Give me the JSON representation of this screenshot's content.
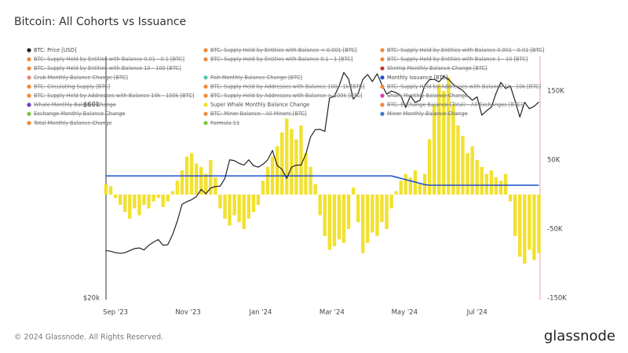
{
  "chart_data": {
    "type": "combo",
    "title": "Bitcoin: All Cohorts vs Issuance",
    "footer": "© 2024 Glassnode. All Rights Reserved.",
    "brand": "glassnode",
    "xlim": [
      0,
      365
    ],
    "xticks": [
      {
        "value": 8,
        "label": "Sep '23"
      },
      {
        "value": 69,
        "label": "Nov '23"
      },
      {
        "value": 130,
        "label": "Jan '24"
      },
      {
        "value": 190,
        "label": "Mar '24"
      },
      {
        "value": 251,
        "label": "May '24"
      },
      {
        "value": 312,
        "label": "Jul '24"
      }
    ],
    "ylim": [
      20000,
      79000
    ],
    "log_y": true,
    "yticks": [
      {
        "value": 20000,
        "label": "$20k"
      },
      {
        "value": 60000,
        "label": "$60k"
      }
    ],
    "y2lim": [
      -150000,
      200000
    ],
    "y2ticks": [
      {
        "value": 150000,
        "label": "150K"
      },
      {
        "value": 50000,
        "label": "50K"
      },
      {
        "value": -50000,
        "label": "-50K"
      },
      {
        "value": -150000,
        "label": "-150K"
      }
    ],
    "x": [
      0,
      4,
      8,
      12,
      16,
      20,
      24,
      28,
      32,
      36,
      40,
      44,
      48,
      52,
      56,
      60,
      64,
      68,
      72,
      76,
      80,
      84,
      88,
      92,
      96,
      100,
      104,
      108,
      112,
      116,
      120,
      124,
      128,
      132,
      136,
      140,
      144,
      148,
      152,
      156,
      160,
      164,
      168,
      172,
      176,
      180,
      184,
      188,
      192,
      196,
      200,
      204,
      208,
      212,
      216,
      220,
      224,
      228,
      232,
      236,
      240,
      244,
      248,
      252,
      256,
      260,
      264,
      268,
      272,
      276,
      280,
      284,
      288,
      292,
      296,
      300,
      304,
      308,
      312,
      316,
      320,
      324,
      328,
      332,
      336,
      340,
      344,
      348,
      352,
      356,
      360,
      364
    ],
    "series": [
      {
        "name": "BTC: Price [USD]",
        "color": "#222222",
        "kind": "line",
        "axis": "y",
        "values": [
          26200,
          26100,
          25900,
          25800,
          25900,
          26200,
          26500,
          26600,
          26300,
          27000,
          27500,
          27900,
          27000,
          27100,
          28700,
          31000,
          34100,
          34600,
          35000,
          35600,
          37100,
          36200,
          37400,
          37700,
          37800,
          39500,
          43900,
          43700,
          43000,
          42600,
          43900,
          42500,
          42100,
          42800,
          43900,
          46300,
          42500,
          41600,
          39500,
          42100,
          42600,
          42600,
          45300,
          50000,
          52100,
          52200,
          51600,
          62400,
          63000,
          66800,
          72100,
          69500,
          62000,
          64000,
          69400,
          71300,
          68500,
          71600,
          67200,
          63800,
          64900,
          64300,
          63100,
          59100,
          63200,
          60800,
          61600,
          67000,
          69200,
          69400,
          68400,
          70500,
          69400,
          67400,
          66200,
          65100,
          63200,
          61600,
          62800,
          56600,
          58000,
          59200,
          64100,
          68200,
          65800,
          66800,
          61400,
          56000,
          60900,
          58700,
          59500,
          61000
        ]
      },
      {
        "name": "BTC: Supply Held by Entities with Balance < 0.001 [BTC]",
        "color": "#f0883a",
        "hidden": true
      },
      {
        "name": "BTC: Supply Held by Entities with Balance 0.001 - 0.01 [BTC]",
        "color": "#f0883a",
        "hidden": true
      },
      {
        "name": "BTC: Supply Held by Entities with Balance 0.01 - 0.1 [BTC]",
        "color": "#f0883a",
        "hidden": true
      },
      {
        "name": "BTC: Supply Held by Entities with Balance 0.1 - 1 [BTC]",
        "color": "#f0883a",
        "hidden": true
      },
      {
        "name": "BTC: Supply Held by Entities with Balance 1 - 10 [BTC]",
        "color": "#f0883a",
        "hidden": true
      },
      {
        "name": "BTC: Supply Held by Entities with Balance 10 - 100 [BTC]",
        "color": "#f0883a",
        "hidden": true
      },
      {
        "name": "Shrimp Monthly Balance Change [BTC]",
        "color": "#c0392b",
        "hidden": true
      },
      {
        "name": "Crab Monthly Balance Change [BTC]",
        "color": "#e58a7a",
        "hidden": true
      },
      {
        "name": "Fish Monthly Balance Change [BTC]",
        "color": "#5bbfae",
        "hidden": true
      },
      {
        "name": "Monthly Issuance [BTC]",
        "color": "#1f4fd1",
        "kind": "line",
        "axis": "y2",
        "values": [
          27000,
          27000,
          27000,
          27000,
          27000,
          27000,
          27000,
          27000,
          27000,
          27000,
          27000,
          27000,
          27000,
          27000,
          27000,
          27000,
          27000,
          27000,
          27000,
          27000,
          27000,
          27000,
          27000,
          27000,
          27000,
          27000,
          27000,
          27000,
          27000,
          27000,
          27000,
          27000,
          27000,
          27000,
          27000,
          27000,
          27000,
          27000,
          27000,
          27000,
          27000,
          27000,
          27000,
          27000,
          27000,
          27000,
          27000,
          27000,
          27000,
          27000,
          27000,
          27000,
          27000,
          27000,
          27000,
          27000,
          27000,
          27000,
          27000,
          27000,
          27000,
          25200,
          23400,
          21600,
          19800,
          18000,
          16200,
          14400,
          13500,
          13500,
          13500,
          13500,
          13500,
          13500,
          13500,
          13500,
          13500,
          13500,
          13500,
          13500,
          13500,
          13500,
          13500,
          13500,
          13500,
          13500,
          13500,
          13500,
          13500,
          13500,
          13500,
          13500
        ]
      },
      {
        "name": "BTC: Circulating Supply [BTC]",
        "color": "#f0883a",
        "hidden": true
      },
      {
        "name": "BTC: Supply Held by Addresses with Balance 100 - 1k [BTC]",
        "color": "#f0883a",
        "hidden": true
      },
      {
        "name": "BTC: Supply Held by Addresses with Balance 1k - 10k [BTC]",
        "color": "#f0883a",
        "hidden": true
      },
      {
        "name": "BTC: Supply Held by Addresses with Balance 10k - 100k [BTC]",
        "color": "#f0883a",
        "hidden": true
      },
      {
        "name": "BTC: Supply Held by Addresses with Balance > 100k [BTC]",
        "color": "#f0883a",
        "hidden": true
      },
      {
        "name": "Shark Monthly Balance Change",
        "color": "#d63fb0",
        "hidden": true
      },
      {
        "name": "Whale Monthly Balance Change",
        "color": "#6a3fbf",
        "hidden": true
      },
      {
        "name": "Super Whale Monthly Balance Change",
        "color": "#f2e12e",
        "kind": "bar",
        "axis": "y2",
        "values": [
          15000,
          12000,
          -5000,
          -15000,
          -25000,
          -35000,
          -20000,
          -30000,
          -15000,
          -20000,
          -10000,
          -5000,
          -18000,
          -10000,
          5000,
          20000,
          35000,
          55000,
          60000,
          45000,
          40000,
          30000,
          50000,
          25000,
          -20000,
          -35000,
          -45000,
          -30000,
          -40000,
          -50000,
          -35000,
          -25000,
          -15000,
          20000,
          40000,
          55000,
          70000,
          90000,
          110000,
          95000,
          80000,
          100000,
          60000,
          40000,
          15000,
          -30000,
          -60000,
          -80000,
          -75000,
          -65000,
          -70000,
          -50000,
          10000,
          -40000,
          -85000,
          -70000,
          -55000,
          -60000,
          -40000,
          -50000,
          -20000,
          5000,
          20000,
          30000,
          25000,
          35000,
          15000,
          30000,
          80000,
          130000,
          160000,
          150000,
          170000,
          130000,
          100000,
          85000,
          60000,
          70000,
          50000,
          40000,
          30000,
          35000,
          25000,
          20000,
          30000,
          -10000,
          -60000,
          -90000,
          -100000,
          -80000,
          -95000,
          -85000
        ]
      },
      {
        "name": "BTC: Exchange Balance (Total) - All Exchanges [BTC]",
        "color": "#f0883a",
        "hidden": true
      },
      {
        "name": "Exchange Monthly Balance Change",
        "color": "#7cc142",
        "hidden": true
      },
      {
        "name": "BTC: Miner Balance - All Miners [BTC]",
        "color": "#f0883a",
        "hidden": true
      },
      {
        "name": "Miner Monthly Balance Change",
        "color": "#3a78c9",
        "hidden": true
      },
      {
        "name": "Total Monthly Balance Change",
        "color": "#f0883a",
        "hidden": true
      },
      {
        "name": "Formula 11",
        "color": "#7cc142",
        "hidden": true
      }
    ]
  }
}
